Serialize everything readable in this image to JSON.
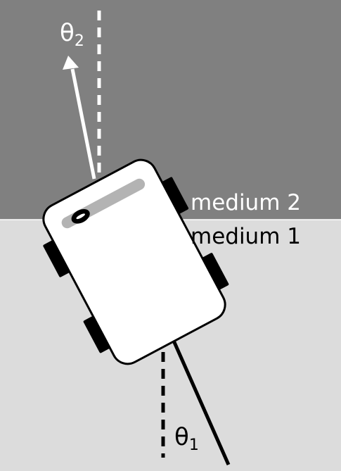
{
  "labels": {
    "medium_top": "medium 2",
    "medium_bottom": "medium 1"
  },
  "angles": {
    "top": {
      "symbol": "θ",
      "subscript": "2"
    },
    "bottom": {
      "symbol": "θ",
      "subscript": "1"
    }
  },
  "colors": {
    "medium_top": "#808080",
    "medium_bottom": "#dcdcdc",
    "car_body": "#ffffff",
    "wheel": "#000000",
    "windshield": "#b3b3b3",
    "arrow_top": "#ffffff",
    "arrow_bottom": "#000000",
    "label_top": "#ffffff",
    "label_bottom": "#000000"
  },
  "icons": {
    "vehicle": "car-top-view-icon",
    "steering": "steering-wheel-icon"
  }
}
